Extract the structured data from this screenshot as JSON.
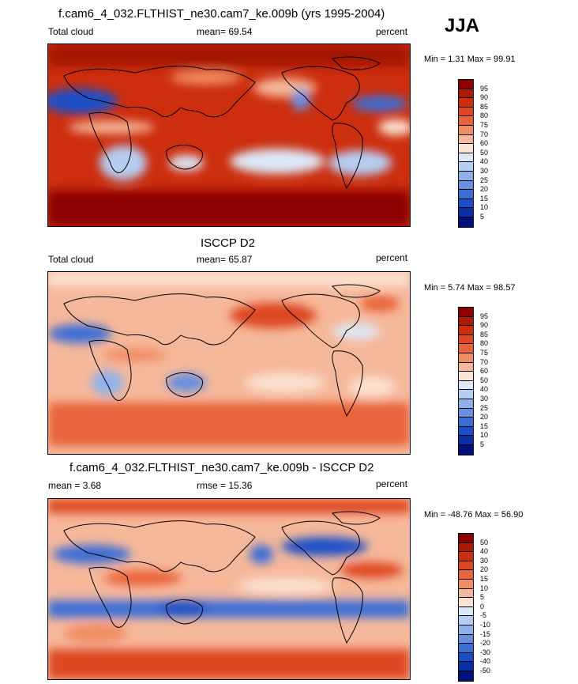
{
  "season": "JJA",
  "panels": [
    {
      "title": "f.cam6_4_032.FLTHIST_ne30.cam7_ke.009b (yrs 1995-2004)",
      "left_label": "Total cloud",
      "center_label": "mean=  69.54",
      "right_label": "percent",
      "minmax": "Min =   1.31 Max =  99.91",
      "colorbar": {
        "labels": [
          "95",
          "90",
          "85",
          "80",
          "75",
          "70",
          "60",
          "50",
          "40",
          "30",
          "25",
          "20",
          "15",
          "10",
          "5"
        ],
        "colors": [
          "#8b0000",
          "#b01806",
          "#cc2e0e",
          "#dd4720",
          "#e8643a",
          "#f08b64",
          "#f6b89a",
          "#fbe2d2",
          "#dde8f8",
          "#b6cdf2",
          "#8fb1ea",
          "#6690e1",
          "#3c6ed6",
          "#1b4fc8",
          "#0a2fa9",
          "#00107d"
        ]
      }
    },
    {
      "title": "ISCCP D2",
      "left_label": "Total cloud",
      "center_label": "mean=  65.87",
      "right_label": "percent",
      "minmax": "Min =   5.74 Max =  98.57",
      "colorbar": {
        "labels": [
          "95",
          "90",
          "85",
          "80",
          "75",
          "70",
          "60",
          "50",
          "40",
          "30",
          "25",
          "20",
          "15",
          "10",
          "5"
        ],
        "colors": [
          "#8b0000",
          "#b01806",
          "#cc2e0e",
          "#dd4720",
          "#e8643a",
          "#f08b64",
          "#f6b89a",
          "#fbe2d2",
          "#dde8f8",
          "#b6cdf2",
          "#8fb1ea",
          "#6690e1",
          "#3c6ed6",
          "#1b4fc8",
          "#0a2fa9",
          "#00107d"
        ]
      }
    },
    {
      "title": "f.cam6_4_032.FLTHIST_ne30.cam7_ke.009b - ISCCP D2",
      "left_label": "mean =   3.68",
      "center_label": "rmse =  15.36",
      "right_label": "percent",
      "minmax": "Min = -48.76 Max =  56.90",
      "colorbar": {
        "labels": [
          "50",
          "40",
          "30",
          "20",
          "15",
          "10",
          "5",
          "0",
          "-5",
          "-10",
          "-15",
          "-20",
          "-30",
          "-40",
          "-50"
        ],
        "colors": [
          "#8b0000",
          "#b01806",
          "#cc2e0e",
          "#dd4720",
          "#e8643a",
          "#f08b64",
          "#f6b89a",
          "#fbe2d2",
          "#dde8f8",
          "#b6cdf2",
          "#8fb1ea",
          "#6690e1",
          "#3c6ed6",
          "#1b4fc8",
          "#0a2fa9",
          "#00107d"
        ]
      }
    }
  ]
}
